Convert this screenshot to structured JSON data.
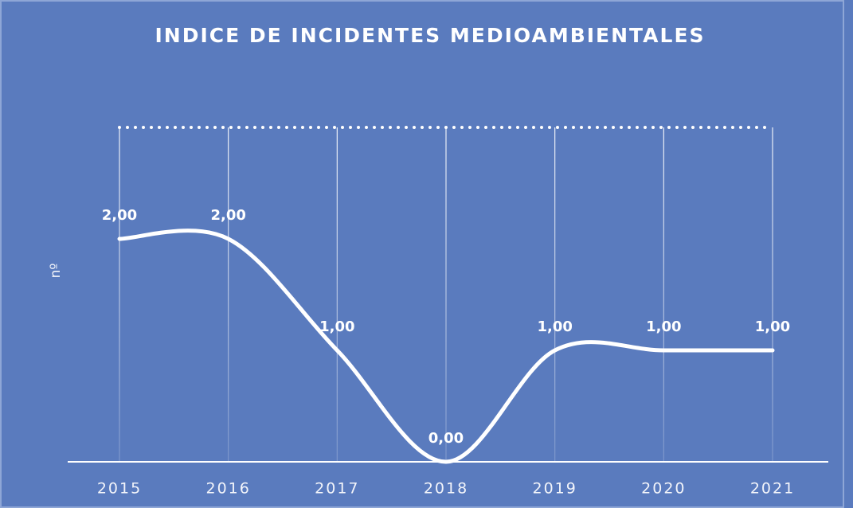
{
  "chart_data": {
    "type": "line",
    "title": "INDICE DE INCIDENTES MEDIOAMBIENTALES",
    "y_label": "nº",
    "categories": [
      "2015",
      "2016",
      "2017",
      "2018",
      "2019",
      "2020",
      "2021"
    ],
    "values": [
      2,
      2,
      1,
      0,
      1,
      1,
      1
    ],
    "value_labels": [
      "2,00",
      "2,00",
      "1,00",
      "0,00",
      "1,00",
      "1,00",
      "1,00"
    ],
    "color": "#ffffff",
    "ylim": [
      0,
      3
    ],
    "smooth": true
  }
}
